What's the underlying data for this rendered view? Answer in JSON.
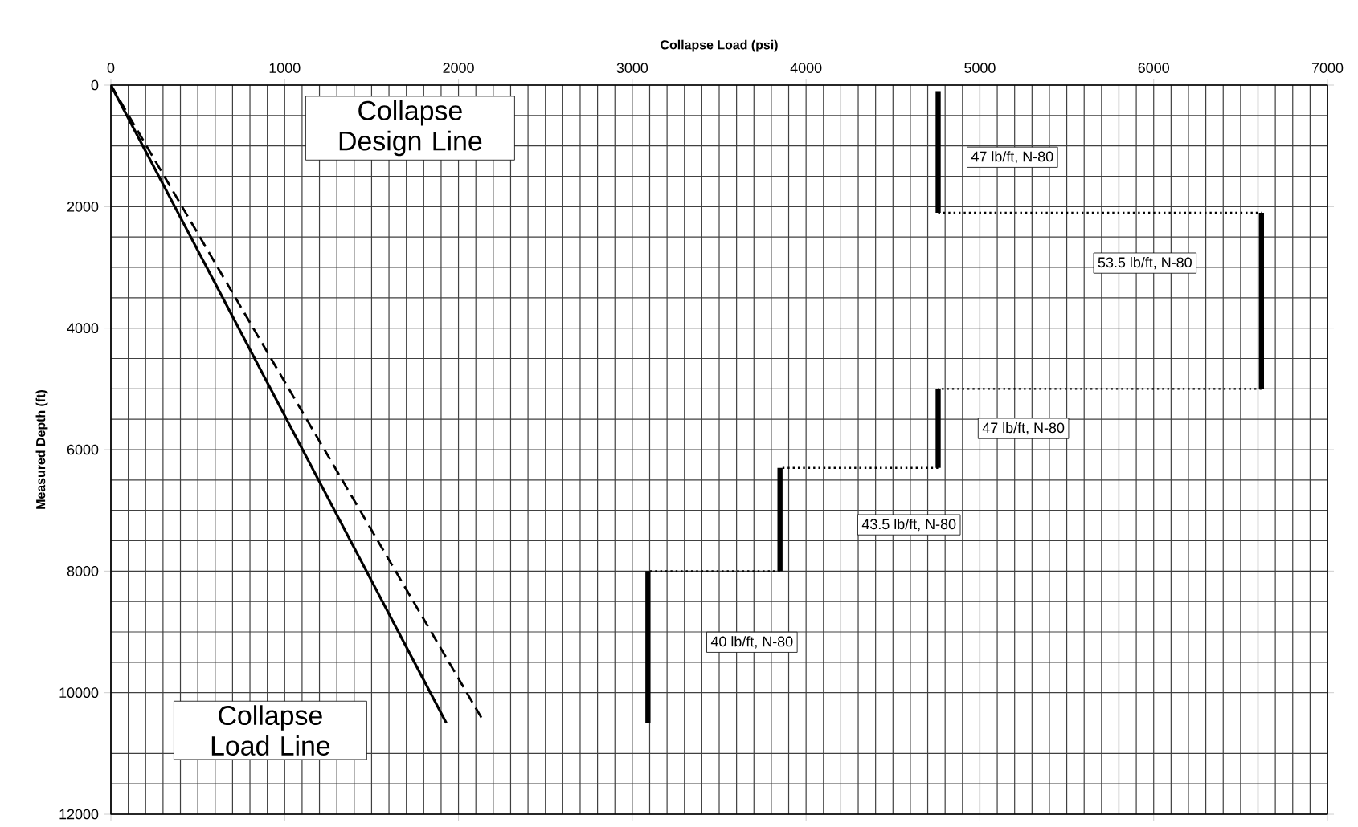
{
  "chart_data": {
    "type": "line",
    "xlabel": "Collapse Load (psi)",
    "ylabel": "Measured Depth (ft)",
    "xlim": [
      0,
      7000
    ],
    "xticks": [
      0,
      1000,
      2000,
      3000,
      4000,
      5000,
      6000,
      7000
    ],
    "ylim": [
      12000,
      0
    ],
    "yticks": [
      0,
      2000,
      4000,
      6000,
      8000,
      10000,
      12000
    ],
    "grid": true,
    "marker": "none",
    "series": [
      {
        "color": "#000000",
        "line_style": "solid",
        "x": [
          0,
          1930
        ],
        "values": [
          0,
          10500
        ]
      },
      {
        "color": "#000000",
        "line_style": "dashed",
        "x": [
          0,
          2150
        ],
        "values": [
          0,
          10500
        ]
      },
      {
        "color": "#000000",
        "line_style": "solid",
        "x": [
          4760,
          4760
        ],
        "values": [
          100,
          2100
        ]
      },
      {
        "color": "#000000",
        "line_style": "dotted",
        "x": [
          4760,
          6620
        ],
        "values": [
          2100,
          2100
        ]
      },
      {
        "color": "#000000",
        "line_style": "solid",
        "x": [
          6620,
          6620
        ],
        "values": [
          2100,
          5000
        ]
      },
      {
        "color": "#000000",
        "line_style": "dotted",
        "x": [
          6620,
          4760
        ],
        "values": [
          5000,
          5000
        ]
      },
      {
        "color": "#000000",
        "line_style": "solid",
        "x": [
          4760,
          4760
        ],
        "values": [
          5000,
          6300
        ]
      },
      {
        "color": "#000000",
        "line_style": "dotted",
        "x": [
          4760,
          3850
        ],
        "values": [
          6300,
          6300
        ]
      },
      {
        "color": "#000000",
        "line_style": "solid",
        "x": [
          3850,
          3850
        ],
        "values": [
          6300,
          8000
        ]
      },
      {
        "color": "#000000",
        "line_style": "dotted",
        "x": [
          3850,
          3090
        ],
        "values": [
          8000,
          8000
        ]
      },
      {
        "color": "#000000",
        "line_style": "solid",
        "x": [
          3090,
          3090
        ],
        "values": [
          8000,
          10500
        ]
      }
    ],
    "annotations": [
      "Collapse Design Line",
      "Collapse Load Line",
      "47 lb/ft, N-80",
      "53.5 lb/ft, N-80",
      "47 lb/ft, N-80",
      "43.5 lb/ft, N-80",
      "40 lb/ft, N-80"
    ]
  }
}
